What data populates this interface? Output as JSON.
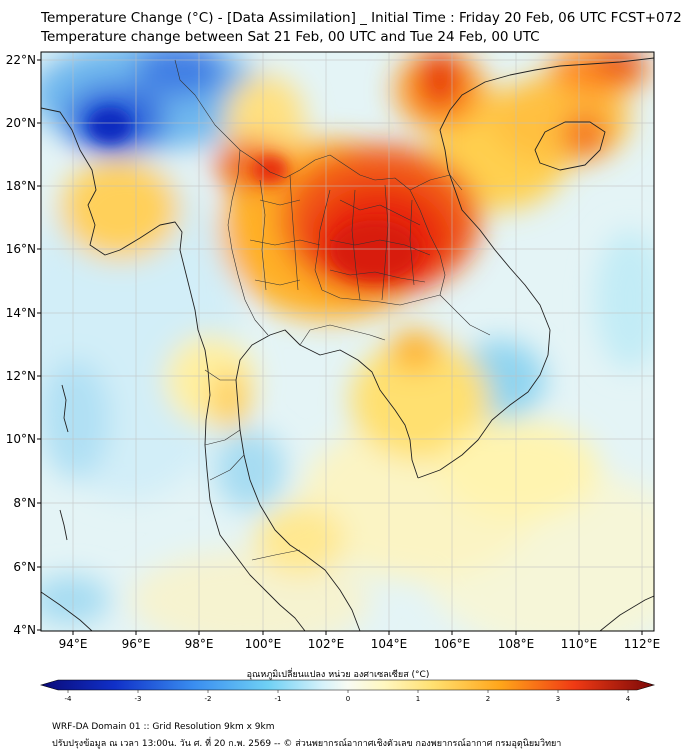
{
  "title_line1": "Temperature Change (°C) - [Data Assimilation] _ Initial Time : Friday 20 Feb, 06 UTC FCST+072",
  "title_line2": "Temperature change between Sat 21 Feb, 00 UTC and Tue 24 Feb, 00 UTC",
  "map": {
    "lon_range": [
      93,
      112.5
    ],
    "lat_range": [
      4,
      22.3
    ],
    "lat_ticks": [
      "22°N",
      "20°N",
      "18°N",
      "16°N",
      "14°N",
      "12°N",
      "10°N",
      "8°N",
      "6°N",
      "4°N"
    ],
    "lon_ticks": [
      "94°E",
      "96°E",
      "98°E",
      "100°E",
      "102°E",
      "104°E",
      "106°E",
      "108°E",
      "110°E",
      "112°E"
    ],
    "colors": {
      "deep_blue": "#1030c8",
      "blue": "#3a78e6",
      "light_blue": "#8fd0f0",
      "pale_blue": "#c8ecf8",
      "neutral": "#f4f8e8",
      "yellow": "#fff2a0",
      "orange": "#ffb020",
      "red": "#f03a14",
      "dark_red": "#b80a0a"
    }
  },
  "colorbar": {
    "label": "อุณหภูมิเปลี่ยนแปลง หน่วย องศาเซลเซียส (°C)",
    "ticks": [
      "-4",
      "-3",
      "-2",
      "-1",
      "0",
      "1",
      "2",
      "3",
      "4"
    ],
    "min": -4,
    "max": 4
  },
  "footer_line1": "WRF-DA Domain 01 :: Grid Resolution 9km x 9km",
  "footer_line2": "ปรับปรุงข้อมูล ณ เวลา 13:00น. วัน ศ. ที่ 20 ก.พ. 2569 -- © ส่วนพยากรณ์อากาศเชิงตัวเลข กองพยากรณ์อากาศ กรมอุตุนิยมวิทยา"
}
